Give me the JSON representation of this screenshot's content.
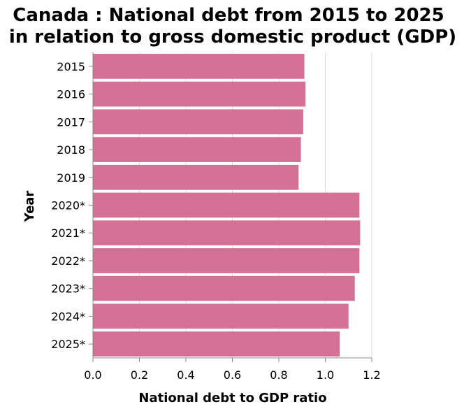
{
  "chart_data": {
    "type": "bar",
    "orientation": "horizontal",
    "title_lines": [
      "Canada : National debt from 2015 to 2025",
      "in relation to gross domestic product (GDP)"
    ],
    "xlabel": "National debt to GDP ratio",
    "ylabel": "Year",
    "categories": [
      "2015",
      "2016",
      "2017",
      "2018",
      "2019",
      "2020*",
      "2021*",
      "2022*",
      "2023*",
      "2024*",
      "2025*"
    ],
    "values": [
      0.91,
      0.915,
      0.905,
      0.895,
      0.885,
      1.147,
      1.15,
      1.147,
      1.127,
      1.1,
      1.062
    ],
    "xlim": [
      0,
      1.2
    ],
    "x_ticks": [
      "0.0",
      "0.2",
      "0.4",
      "0.6",
      "0.8",
      "1.0",
      "1.2"
    ],
    "grid": "vertical",
    "bar_color": "#d67196",
    "grid_color": "#dddddd",
    "axis_color": "#888888"
  }
}
